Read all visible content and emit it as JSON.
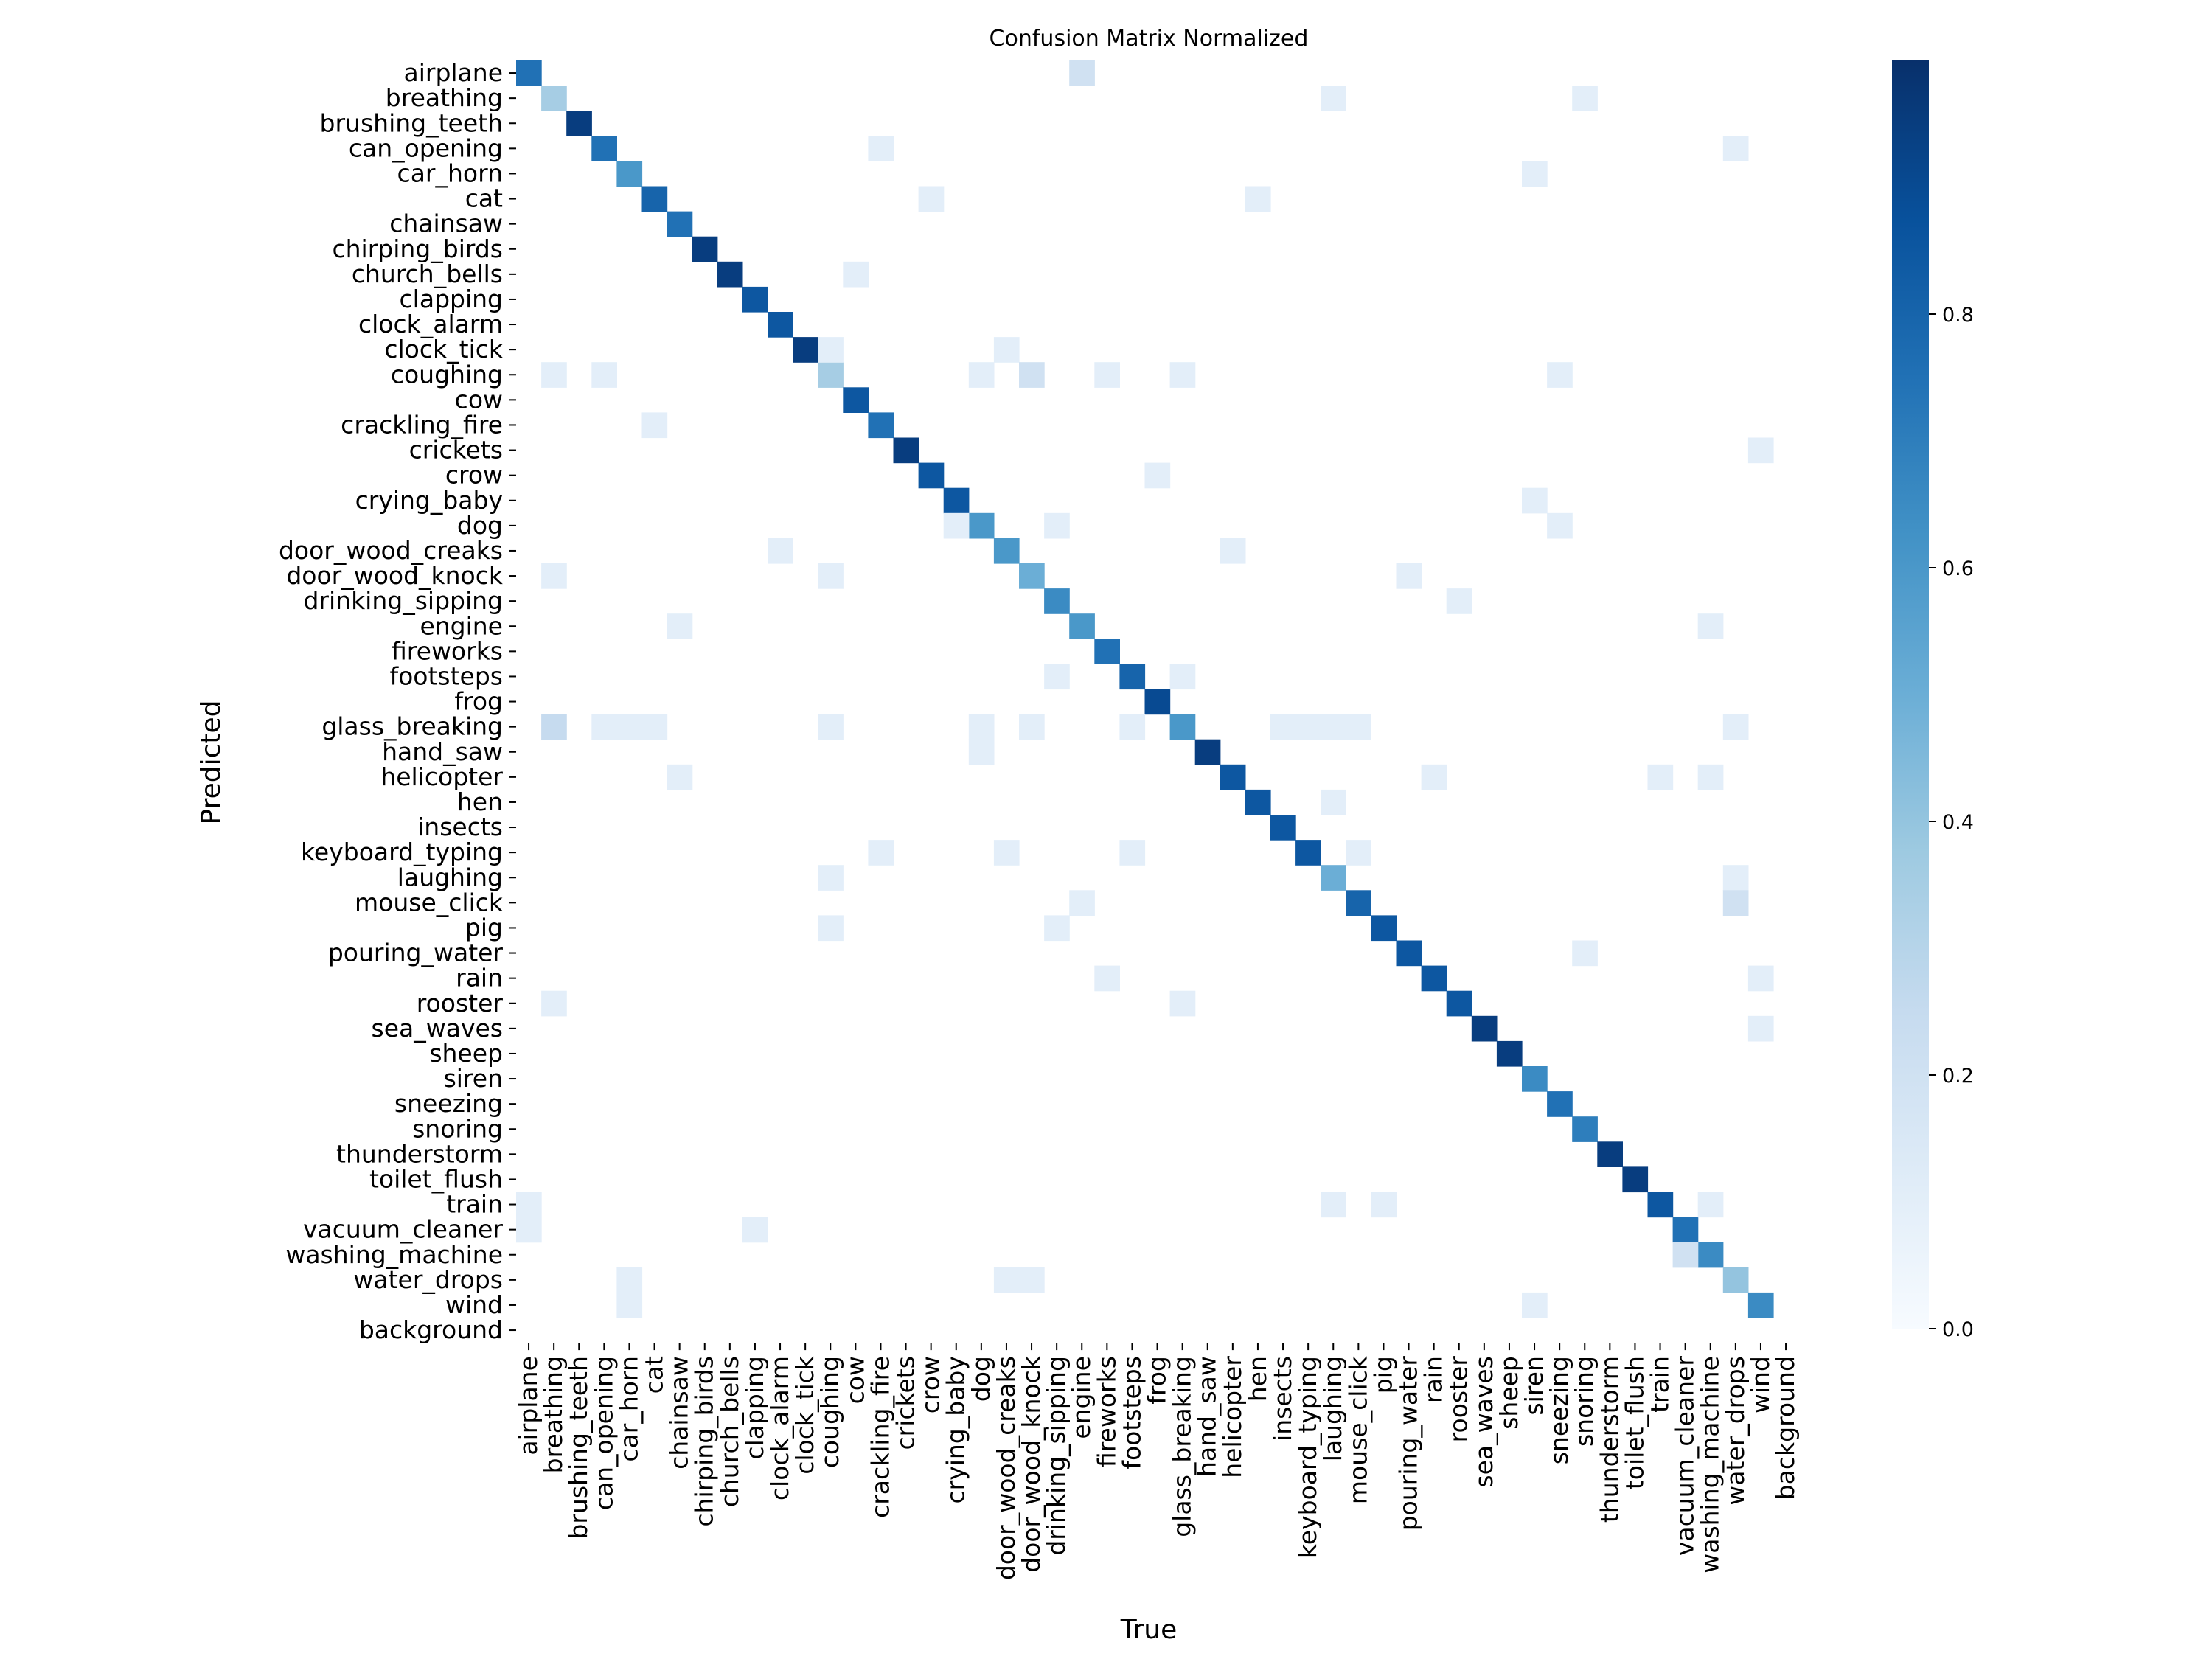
{
  "chart_data": {
    "type": "heatmap",
    "title": "Confusion Matrix Normalized",
    "xlabel": "True",
    "ylabel": "Predicted",
    "labels": [
      "airplane",
      "breathing",
      "brushing_teeth",
      "can_opening",
      "car_horn",
      "cat",
      "chainsaw",
      "chirping_birds",
      "church_bells",
      "clapping",
      "clock_alarm",
      "clock_tick",
      "coughing",
      "cow",
      "crackling_fire",
      "crickets",
      "crow",
      "crying_baby",
      "dog",
      "door_wood_creaks",
      "door_wood_knock",
      "drinking_sipping",
      "engine",
      "fireworks",
      "footsteps",
      "frog",
      "glass_breaking",
      "hand_saw",
      "helicopter",
      "hen",
      "insects",
      "keyboard_typing",
      "laughing",
      "mouse_click",
      "pig",
      "pouring_water",
      "rain",
      "rooster",
      "sea_waves",
      "sheep",
      "siren",
      "sneezing",
      "snoring",
      "thunderstorm",
      "toilet_flush",
      "train",
      "vacuum_cleaner",
      "washing_machine",
      "water_drops",
      "wind",
      "background"
    ],
    "colorbar": {
      "cmap": "Blues",
      "range": [
        0,
        1.0
      ],
      "ticks": [
        "0.0",
        "0.2",
        "0.4",
        "0.6",
        "0.8"
      ]
    },
    "grid": false,
    "diagonal": [
      0.75,
      0.35,
      0.95,
      0.75,
      0.6,
      0.8,
      0.75,
      0.95,
      0.95,
      0.85,
      0.85,
      0.95,
      0.35,
      0.85,
      0.75,
      0.95,
      0.85,
      0.85,
      0.6,
      0.6,
      0.5,
      0.65,
      0.6,
      0.75,
      0.8,
      0.9,
      0.6,
      0.95,
      0.85,
      0.85,
      0.85,
      0.85,
      0.5,
      0.8,
      0.85,
      0.85,
      0.85,
      0.85,
      0.95,
      0.95,
      0.65,
      0.75,
      0.7,
      0.95,
      0.95,
      0.85,
      0.75,
      0.65,
      0.4,
      0.65,
      0.0
    ],
    "off_diagonal": [
      [
        0,
        22,
        0.2
      ],
      [
        1,
        32,
        0.1
      ],
      [
        1,
        42,
        0.1
      ],
      [
        3,
        14,
        0.1
      ],
      [
        3,
        48,
        0.1
      ],
      [
        4,
        40,
        0.1
      ],
      [
        5,
        16,
        0.1
      ],
      [
        5,
        29,
        0.1
      ],
      [
        8,
        13,
        0.1
      ],
      [
        11,
        12,
        0.1
      ],
      [
        11,
        19,
        0.1
      ],
      [
        12,
        1,
        0.1
      ],
      [
        12,
        3,
        0.1
      ],
      [
        12,
        18,
        0.1
      ],
      [
        12,
        20,
        0.2
      ],
      [
        12,
        23,
        0.1
      ],
      [
        12,
        26,
        0.1
      ],
      [
        12,
        41,
        0.1
      ],
      [
        14,
        5,
        0.1
      ],
      [
        15,
        49,
        0.1
      ],
      [
        16,
        25,
        0.1
      ],
      [
        17,
        40,
        0.1
      ],
      [
        18,
        17,
        0.1
      ],
      [
        18,
        21,
        0.1
      ],
      [
        18,
        41,
        0.1
      ],
      [
        19,
        10,
        0.1
      ],
      [
        19,
        28,
        0.1
      ],
      [
        20,
        1,
        0.1
      ],
      [
        20,
        12,
        0.1
      ],
      [
        20,
        35,
        0.1
      ],
      [
        21,
        37,
        0.1
      ],
      [
        22,
        6,
        0.1
      ],
      [
        22,
        47,
        0.1
      ],
      [
        24,
        21,
        0.1
      ],
      [
        24,
        26,
        0.1
      ],
      [
        26,
        1,
        0.25
      ],
      [
        26,
        3,
        0.1
      ],
      [
        26,
        4,
        0.1
      ],
      [
        26,
        5,
        0.1
      ],
      [
        26,
        12,
        0.1
      ],
      [
        26,
        18,
        0.1
      ],
      [
        26,
        20,
        0.1
      ],
      [
        26,
        24,
        0.1
      ],
      [
        26,
        30,
        0.1
      ],
      [
        26,
        31,
        0.1
      ],
      [
        26,
        32,
        0.1
      ],
      [
        26,
        33,
        0.1
      ],
      [
        26,
        48,
        0.1
      ],
      [
        27,
        18,
        0.1
      ],
      [
        28,
        6,
        0.1
      ],
      [
        28,
        36,
        0.1
      ],
      [
        28,
        45,
        0.1
      ],
      [
        28,
        47,
        0.1
      ],
      [
        29,
        32,
        0.1
      ],
      [
        31,
        14,
        0.1
      ],
      [
        31,
        19,
        0.1
      ],
      [
        31,
        24,
        0.1
      ],
      [
        31,
        33,
        0.1
      ],
      [
        32,
        12,
        0.1
      ],
      [
        32,
        48,
        0.1
      ],
      [
        33,
        22,
        0.1
      ],
      [
        33,
        48,
        0.2
      ],
      [
        34,
        12,
        0.1
      ],
      [
        34,
        21,
        0.1
      ],
      [
        35,
        42,
        0.1
      ],
      [
        36,
        23,
        0.1
      ],
      [
        36,
        49,
        0.1
      ],
      [
        37,
        1,
        0.1
      ],
      [
        37,
        26,
        0.1
      ],
      [
        38,
        49,
        0.1
      ],
      [
        45,
        0,
        0.1
      ],
      [
        45,
        32,
        0.1
      ],
      [
        45,
        34,
        0.1
      ],
      [
        45,
        47,
        0.1
      ],
      [
        46,
        0,
        0.1
      ],
      [
        46,
        9,
        0.1
      ],
      [
        47,
        46,
        0.2
      ],
      [
        48,
        4,
        0.1
      ],
      [
        48,
        19,
        0.1
      ],
      [
        48,
        20,
        0.1
      ],
      [
        49,
        4,
        0.1
      ],
      [
        49,
        40,
        0.1
      ]
    ]
  }
}
